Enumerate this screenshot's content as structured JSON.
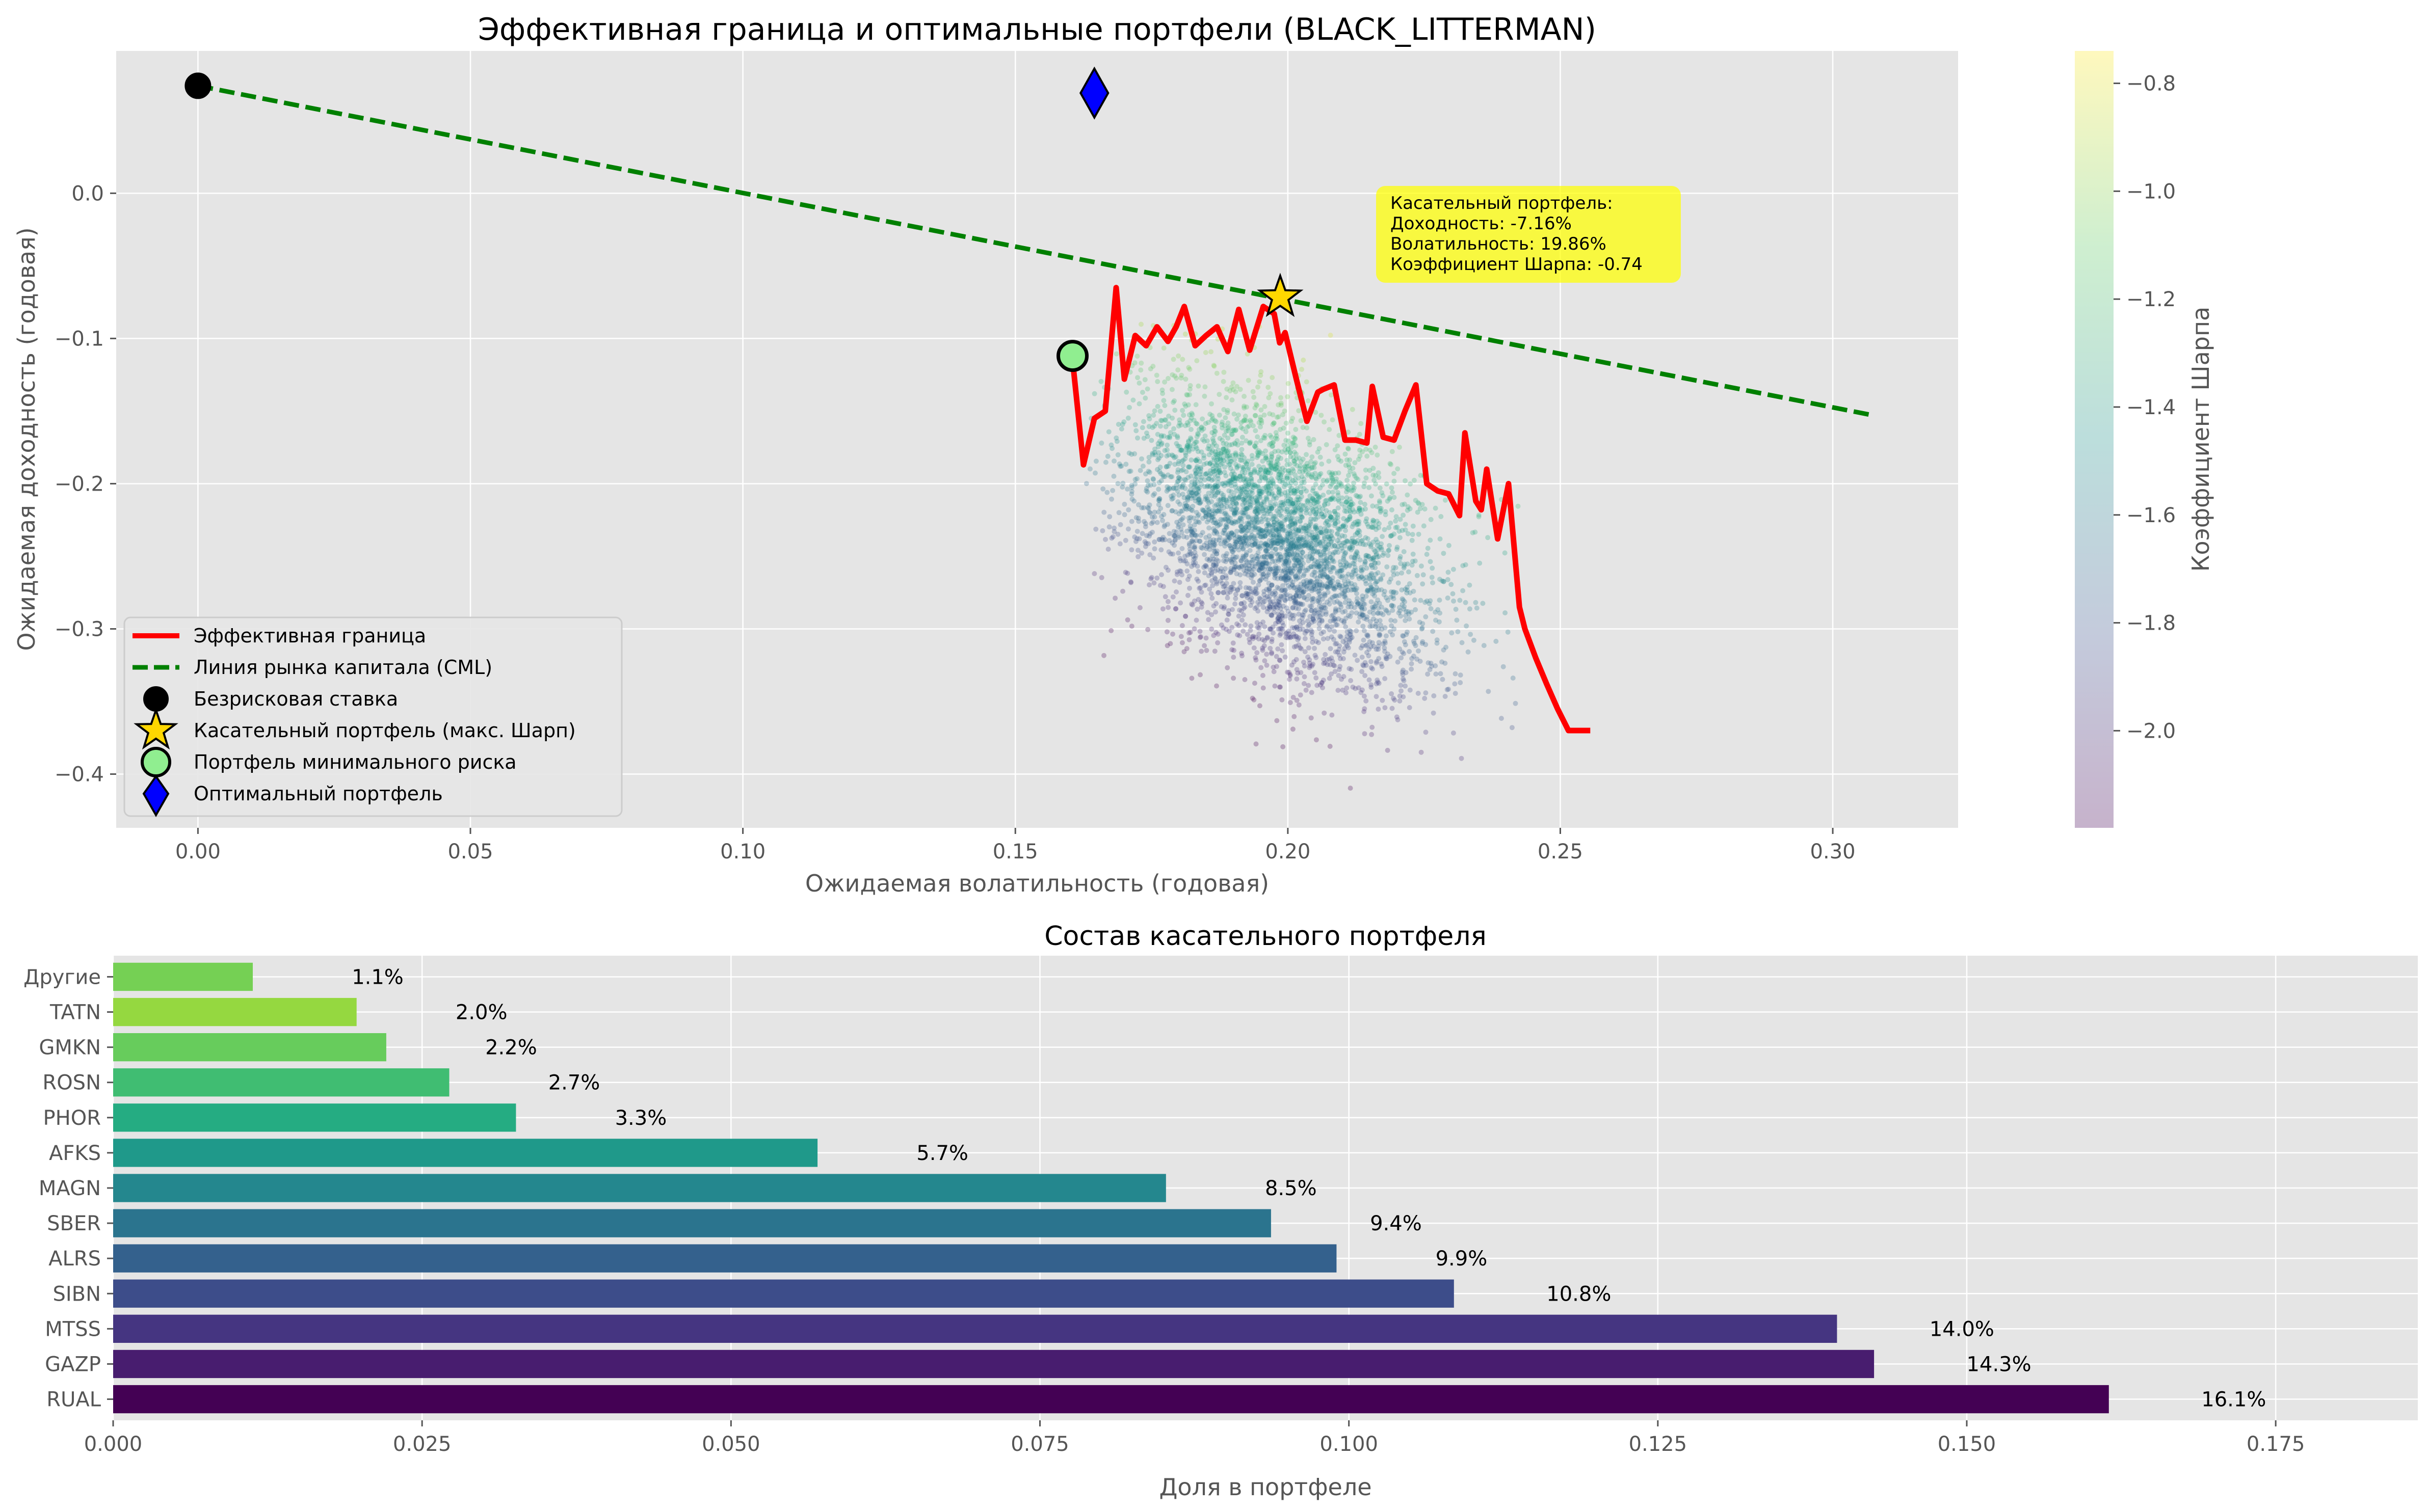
{
  "chart_data": [
    {
      "type": "scatter",
      "title": "Эффективная граница и оптимальные портфели (BLACK_LITTERMAN)",
      "xlabel": "Ожидаемая волатильность (годовая)",
      "ylabel": "Ожидаемая доходность (годовая)",
      "xlim": [
        -0.015,
        0.323
      ],
      "ylim": [
        -0.437,
        0.098
      ],
      "xticks": [
        0.0,
        0.05,
        0.1,
        0.15,
        0.2,
        0.25,
        0.3
      ],
      "xtick_labels": [
        "0.00",
        "0.05",
        "0.10",
        "0.15",
        "0.20",
        "0.25",
        "0.30"
      ],
      "yticks": [
        0.0,
        -0.1,
        -0.2,
        -0.3,
        -0.4
      ],
      "ytick_labels": [
        "0.0",
        "−0.1",
        "−0.2",
        "−0.3",
        "−0.4"
      ],
      "grid": true,
      "legend_position": "lower-left",
      "colorbar": {
        "label": "Коэффициент Шарпа",
        "range": [
          -2.18,
          -0.74
        ],
        "ticks": [
          -0.8,
          -1.0,
          -1.2,
          -1.4,
          -1.6,
          -1.8,
          -2.0
        ],
        "tick_labels": [
          "−0.8",
          "−1.0",
          "−1.2",
          "−1.4",
          "−1.6",
          "−1.8",
          "−2.0"
        ],
        "colormap": "viridis"
      },
      "series": [
        {
          "name": "Эффективная граница",
          "kind": "line",
          "color": "#ff0000",
          "x": [
            0.1605,
            0.1625,
            0.1645,
            0.1665,
            0.1685,
            0.17,
            0.172,
            0.174,
            0.176,
            0.178,
            0.1795,
            0.181,
            0.183,
            0.185,
            0.187,
            0.189,
            0.191,
            0.193,
            0.1955,
            0.1975,
            0.1985,
            0.1995,
            0.2015,
            0.2035,
            0.2055,
            0.2065,
            0.2085,
            0.2105,
            0.2125,
            0.2145,
            0.2155,
            0.2175,
            0.2195,
            0.2215,
            0.2235,
            0.2255,
            0.2275,
            0.2295,
            0.2315,
            0.2325,
            0.2345,
            0.2355,
            0.2365,
            0.2385,
            0.2405,
            0.2425,
            0.2435,
            0.2455,
            0.2475,
            0.2495,
            0.2515,
            0.2535,
            0.2555
          ],
          "y": [
            -0.115,
            -0.187,
            -0.155,
            -0.15,
            -0.065,
            -0.128,
            -0.098,
            -0.105,
            -0.092,
            -0.102,
            -0.092,
            -0.078,
            -0.105,
            -0.098,
            -0.092,
            -0.109,
            -0.08,
            -0.108,
            -0.078,
            -0.083,
            -0.103,
            -0.096,
            -0.127,
            -0.157,
            -0.137,
            -0.135,
            -0.132,
            -0.17,
            -0.17,
            -0.172,
            -0.133,
            -0.168,
            -0.17,
            -0.15,
            -0.132,
            -0.2,
            -0.205,
            -0.207,
            -0.222,
            -0.165,
            -0.212,
            -0.218,
            -0.19,
            -0.238,
            -0.2,
            -0.285,
            -0.3,
            -0.32,
            -0.338,
            -0.355,
            -0.37,
            -0.37,
            -0.37
          ]
        },
        {
          "name": "Линия рынка капитала (CML)",
          "kind": "dashed-line",
          "color": "#008000",
          "x": [
            0.0,
            0.3075
          ],
          "y": [
            0.074,
            -0.153
          ]
        },
        {
          "name": "Безрисковая ставка",
          "kind": "marker",
          "marker": "circle",
          "color": "#000000",
          "x": 0.0,
          "y": 0.074
        },
        {
          "name": "Касательный портфель (макс. Шарп)",
          "kind": "marker",
          "marker": "star",
          "color": "#ffd700",
          "x": 0.1986,
          "y": -0.0716
        },
        {
          "name": "Портфель минимального риска",
          "kind": "marker",
          "marker": "circle",
          "color": "#90ee90",
          "x": 0.1605,
          "y": -0.112
        },
        {
          "name": "Оптимальный портфель",
          "kind": "marker",
          "marker": "diamond",
          "color": "#0000ff",
          "x": 0.1645,
          "y": 0.069
        }
      ],
      "random_portfolios": {
        "count": 4000,
        "x_center": 0.198,
        "x_spread": 0.014,
        "y_center": -0.235,
        "y_spread": 0.05,
        "x_min": 0.163,
        "x_max": 0.243
      },
      "annotation": {
        "lines": [
          "Касательный портфель:",
          "Доходность: -7.16%",
          "Волатильность: 19.86%",
          "Коэффициент Шарпа: -0.74"
        ],
        "background": "#ffff00",
        "anchor": [
          0.218,
          0.002
        ]
      }
    },
    {
      "type": "bar",
      "orientation": "horizontal",
      "title": "Состав касательного портфеля",
      "xlabel": "Доля в портфеле",
      "ylabel": "",
      "xlim": [
        0.0,
        0.1865
      ],
      "xticks": [
        0.0,
        0.025,
        0.05,
        0.075,
        0.1,
        0.125,
        0.15,
        0.175
      ],
      "xtick_labels": [
        "0.000",
        "0.025",
        "0.050",
        "0.075",
        "0.100",
        "0.125",
        "0.150",
        "0.175"
      ],
      "grid": true,
      "categories": [
        "RUAL",
        "GAZP",
        "MTSS",
        "SIBN",
        "ALRS",
        "SBER",
        "MAGN",
        "AFKS",
        "PHOR",
        "ROSN",
        "GMKN",
        "TATN",
        "Другие"
      ],
      "values": [
        0.1615,
        0.1425,
        0.1395,
        0.1085,
        0.099,
        0.0937,
        0.0852,
        0.057,
        0.0326,
        0.0272,
        0.0221,
        0.0197,
        0.0113
      ],
      "value_labels": [
        "16.1%",
        "14.3%",
        "14.0%",
        "10.8%",
        "9.9%",
        "9.4%",
        "8.5%",
        "5.7%",
        "3.3%",
        "2.7%",
        "2.2%",
        "2.0%",
        "1.1%"
      ],
      "colors": [
        "#440154",
        "#481d6f",
        "#453581",
        "#3d4d8a",
        "#34618d",
        "#2b748e",
        "#24878e",
        "#1f998a",
        "#25ac82",
        "#40bd72",
        "#67cc5c",
        "#95d840",
        "#75d054"
      ]
    }
  ]
}
